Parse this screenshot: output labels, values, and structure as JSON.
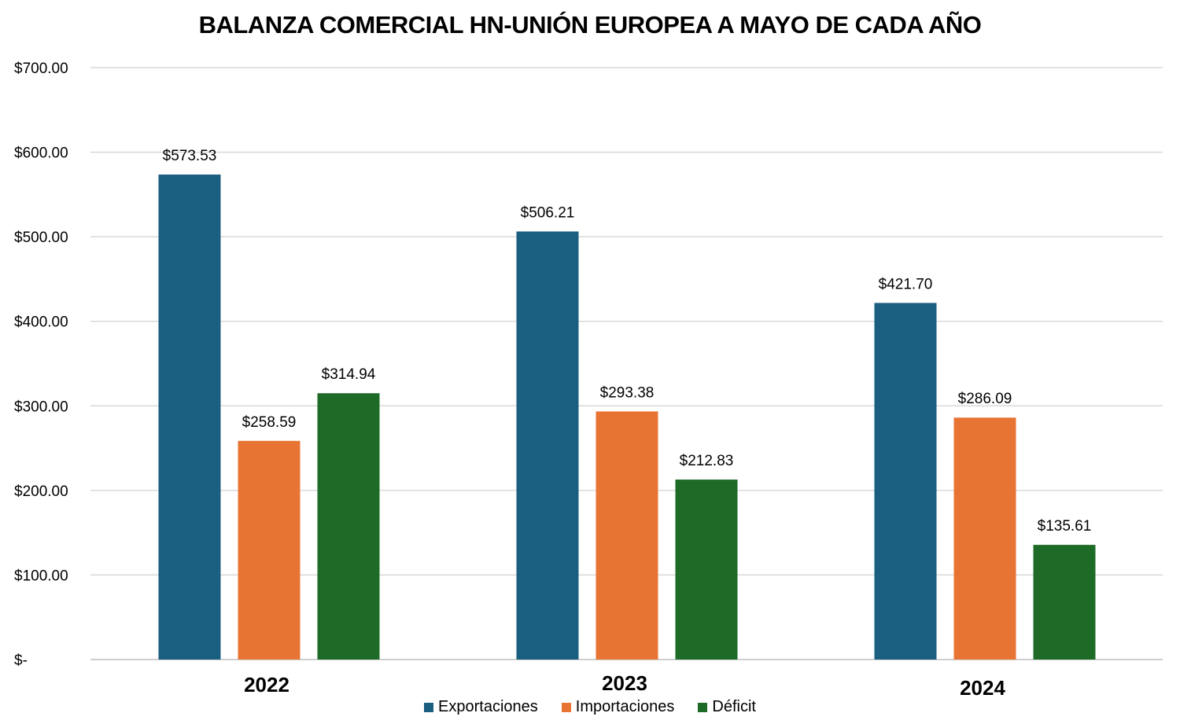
{
  "chart_data": {
    "type": "bar",
    "title": "BALANZA COMERCIAL HN-UNIÓN EUROPEA A MAYO DE CADA AÑO",
    "xlabel": "",
    "ylabel": "",
    "categories": [
      "2022",
      "2023",
      "2024"
    ],
    "series": [
      {
        "name": "Exportaciones",
        "color": "#1a5e80",
        "values": [
          573.53,
          506.21,
          421.7
        ],
        "labels": [
          "$573.53",
          "$506.21",
          "$421.70"
        ]
      },
      {
        "name": "Importaciones",
        "color": "#e87434",
        "values": [
          258.59,
          293.38,
          286.09
        ],
        "labels": [
          "$258.59",
          "$293.38",
          "$286.09"
        ]
      },
      {
        "name": "Déficit",
        "color": "#1e6b27",
        "values": [
          314.94,
          212.83,
          135.61
        ],
        "labels": [
          "$314.94",
          "$212.83",
          "$135.61"
        ]
      }
    ],
    "ylim": [
      0,
      700
    ],
    "yticks": [
      0,
      100,
      200,
      300,
      400,
      500,
      600,
      700
    ],
    "ytick_labels": [
      "$-",
      "$100.00",
      "$200.00",
      "$300.00",
      "$400.00",
      "$500.00",
      "$600.00",
      "$700.00"
    ],
    "grid": true,
    "legend_position": "bottom"
  }
}
